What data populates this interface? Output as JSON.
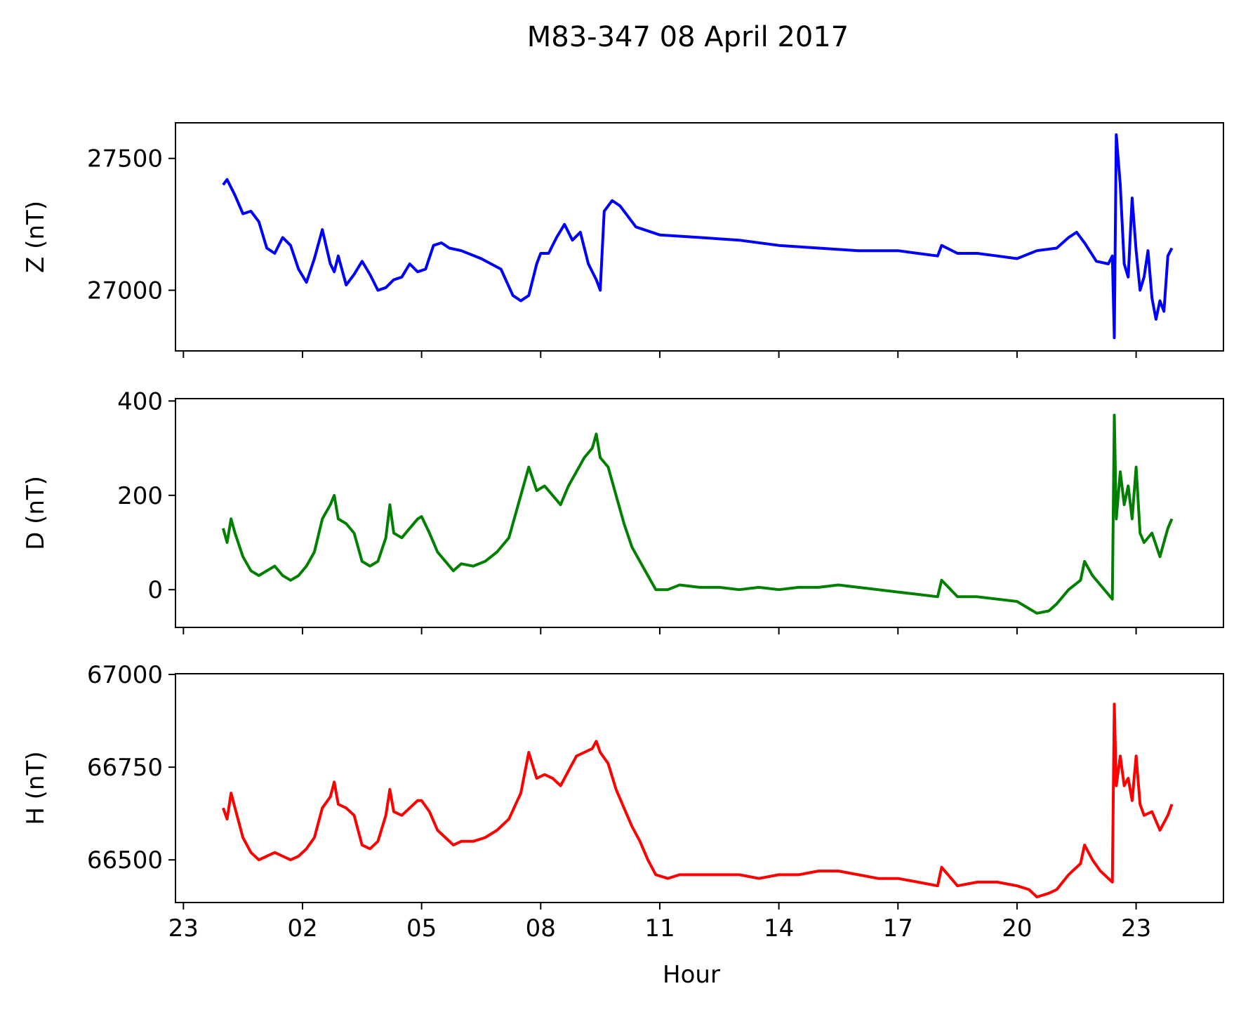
{
  "chart_data": {
    "type": "line",
    "title": "M83-347 08 April 2017",
    "xlabel": "Hour",
    "x_tick_labels": [
      "23",
      "02",
      "05",
      "08",
      "11",
      "14",
      "17",
      "20",
      "23"
    ],
    "x_ticks_hours": [
      -1,
      2,
      5,
      8,
      11,
      14,
      17,
      20,
      23
    ],
    "xlim_hours": [
      -1.2,
      25.2
    ],
    "shared_x": true,
    "grid": false,
    "colors": {
      "Z": "#0000ff",
      "D": "#008000",
      "H": "#ff0000"
    },
    "panels": [
      {
        "ylabel": "Z (nT)",
        "color": "#0000ff",
        "ylim": [
          26770,
          27635
        ],
        "yticks": [
          27000,
          27500
        ],
        "x_hours": [
          0,
          0.1,
          0.3,
          0.5,
          0.7,
          0.9,
          1.1,
          1.3,
          1.5,
          1.7,
          1.9,
          2.1,
          2.3,
          2.5,
          2.7,
          2.8,
          2.9,
          3.1,
          3.3,
          3.5,
          3.7,
          3.9,
          4.1,
          4.3,
          4.5,
          4.7,
          4.9,
          5.1,
          5.3,
          5.5,
          5.7,
          6.0,
          6.5,
          7.0,
          7.3,
          7.5,
          7.7,
          7.9,
          8.0,
          8.2,
          8.4,
          8.6,
          8.8,
          9.0,
          9.2,
          9.4,
          9.5,
          9.6,
          9.8,
          10.0,
          10.2,
          10.4,
          10.6,
          11.0,
          12.0,
          13.0,
          14.0,
          15.0,
          16.0,
          17.0,
          17.5,
          18.0,
          18.1,
          18.5,
          19.0,
          19.5,
          20.0,
          20.5,
          21.0,
          21.3,
          21.5,
          21.7,
          22.0,
          22.3,
          22.4,
          22.45,
          22.5,
          22.6,
          22.7,
          22.8,
          22.9,
          23.0,
          23.1,
          23.2,
          23.3,
          23.4,
          23.5,
          23.6,
          23.7,
          23.8,
          23.9
        ],
        "values": [
          27400,
          27420,
          27360,
          27290,
          27300,
          27260,
          27160,
          27140,
          27200,
          27170,
          27080,
          27030,
          27120,
          27230,
          27100,
          27070,
          27130,
          27020,
          27060,
          27110,
          27060,
          27000,
          27010,
          27040,
          27050,
          27100,
          27070,
          27080,
          27170,
          27180,
          27160,
          27150,
          27120,
          27080,
          26980,
          26960,
          26980,
          27100,
          27140,
          27140,
          27200,
          27250,
          27190,
          27220,
          27100,
          27040,
          27000,
          27300,
          27340,
          27320,
          27280,
          27240,
          27230,
          27210,
          27200,
          27190,
          27170,
          27160,
          27150,
          27150,
          27140,
          27130,
          27170,
          27140,
          27140,
          27130,
          27120,
          27150,
          27160,
          27200,
          27220,
          27180,
          27110,
          27100,
          27130,
          26820,
          27590,
          27400,
          27100,
          27050,
          27350,
          27150,
          27000,
          27050,
          27150,
          26970,
          26890,
          26960,
          26920,
          27130,
          27160
        ]
      },
      {
        "ylabel": "D (nT)",
        "color": "#008000",
        "ylim": [
          -80,
          405
        ],
        "yticks": [
          0,
          200,
          400
        ],
        "x_hours": [
          0,
          0.1,
          0.2,
          0.3,
          0.5,
          0.7,
          0.9,
          1.1,
          1.3,
          1.5,
          1.7,
          1.9,
          2.1,
          2.3,
          2.5,
          2.7,
          2.8,
          2.9,
          3.1,
          3.3,
          3.5,
          3.7,
          3.9,
          4.1,
          4.2,
          4.3,
          4.5,
          4.7,
          4.9,
          5.0,
          5.2,
          5.4,
          5.6,
          5.8,
          6.0,
          6.3,
          6.6,
          6.9,
          7.2,
          7.5,
          7.7,
          7.9,
          8.1,
          8.3,
          8.5,
          8.7,
          8.9,
          9.1,
          9.3,
          9.4,
          9.5,
          9.7,
          9.9,
          10.1,
          10.3,
          10.5,
          10.7,
          10.9,
          11.2,
          11.5,
          12.0,
          12.5,
          13.0,
          13.5,
          14.0,
          14.5,
          15.0,
          15.5,
          16.0,
          16.5,
          17.0,
          17.5,
          18.0,
          18.1,
          18.5,
          19.0,
          19.5,
          20.0,
          20.3,
          20.5,
          20.8,
          21.0,
          21.3,
          21.6,
          21.7,
          21.9,
          22.1,
          22.3,
          22.4,
          22.45,
          22.5,
          22.6,
          22.7,
          22.8,
          22.9,
          23.0,
          23.1,
          23.2,
          23.4,
          23.6,
          23.8,
          23.9
        ],
        "values": [
          130,
          100,
          150,
          120,
          70,
          40,
          30,
          40,
          50,
          30,
          20,
          30,
          50,
          80,
          150,
          180,
          200,
          150,
          140,
          120,
          60,
          50,
          60,
          110,
          180,
          120,
          110,
          130,
          150,
          155,
          120,
          80,
          60,
          40,
          55,
          50,
          60,
          80,
          110,
          200,
          260,
          210,
          220,
          200,
          180,
          220,
          250,
          280,
          300,
          330,
          280,
          260,
          200,
          140,
          90,
          60,
          30,
          0,
          0,
          10,
          5,
          5,
          0,
          5,
          0,
          5,
          5,
          10,
          5,
          0,
          -5,
          -10,
          -15,
          20,
          -15,
          -15,
          -20,
          -25,
          -40,
          -50,
          -45,
          -30,
          0,
          20,
          60,
          30,
          10,
          -10,
          -20,
          370,
          150,
          250,
          180,
          220,
          150,
          260,
          120,
          100,
          120,
          70,
          130,
          150
        ]
      },
      {
        "ylabel": "H (nT)",
        "color": "#ff0000",
        "ylim": [
          66385,
          67002
        ],
        "yticks": [
          66500,
          66750,
          67000
        ],
        "x_hours": [
          0,
          0.1,
          0.2,
          0.3,
          0.5,
          0.7,
          0.9,
          1.1,
          1.3,
          1.5,
          1.7,
          1.9,
          2.1,
          2.3,
          2.5,
          2.7,
          2.8,
          2.9,
          3.1,
          3.3,
          3.5,
          3.7,
          3.9,
          4.1,
          4.2,
          4.3,
          4.5,
          4.7,
          4.9,
          5.0,
          5.2,
          5.4,
          5.6,
          5.8,
          6.0,
          6.3,
          6.6,
          6.9,
          7.2,
          7.5,
          7.7,
          7.9,
          8.1,
          8.3,
          8.5,
          8.7,
          8.9,
          9.1,
          9.3,
          9.4,
          9.5,
          9.7,
          9.9,
          10.1,
          10.3,
          10.5,
          10.7,
          10.9,
          11.2,
          11.5,
          12.0,
          12.5,
          13.0,
          13.5,
          14.0,
          14.5,
          15.0,
          15.5,
          16.0,
          16.5,
          17.0,
          17.5,
          18.0,
          18.1,
          18.5,
          19.0,
          19.5,
          20.0,
          20.3,
          20.5,
          20.8,
          21.0,
          21.3,
          21.6,
          21.7,
          21.9,
          22.1,
          22.3,
          22.4,
          22.45,
          22.5,
          22.6,
          22.7,
          22.8,
          22.9,
          23.0,
          23.1,
          23.2,
          23.4,
          23.6,
          23.8,
          23.9
        ],
        "values": [
          66640,
          66610,
          66680,
          66640,
          66560,
          66520,
          66500,
          66510,
          66520,
          66510,
          66500,
          66510,
          66530,
          66560,
          66640,
          66670,
          66710,
          66650,
          66640,
          66620,
          66540,
          66530,
          66550,
          66620,
          66690,
          66630,
          66620,
          66640,
          66660,
          66660,
          66630,
          66580,
          66560,
          66540,
          66550,
          66550,
          66560,
          66580,
          66610,
          66680,
          66790,
          66720,
          66730,
          66720,
          66700,
          66740,
          66780,
          66790,
          66800,
          66820,
          66790,
          66760,
          66690,
          66640,
          66590,
          66550,
          66500,
          66460,
          66450,
          66460,
          66460,
          66460,
          66460,
          66450,
          66460,
          66460,
          66470,
          66470,
          66460,
          66450,
          66450,
          66440,
          66430,
          66480,
          66430,
          66440,
          66440,
          66430,
          66420,
          66400,
          66410,
          66420,
          66460,
          66490,
          66540,
          66500,
          66470,
          66450,
          66440,
          66920,
          66700,
          66780,
          66700,
          66720,
          66660,
          66780,
          66650,
          66620,
          66630,
          66580,
          66620,
          66650
        ]
      }
    ]
  }
}
